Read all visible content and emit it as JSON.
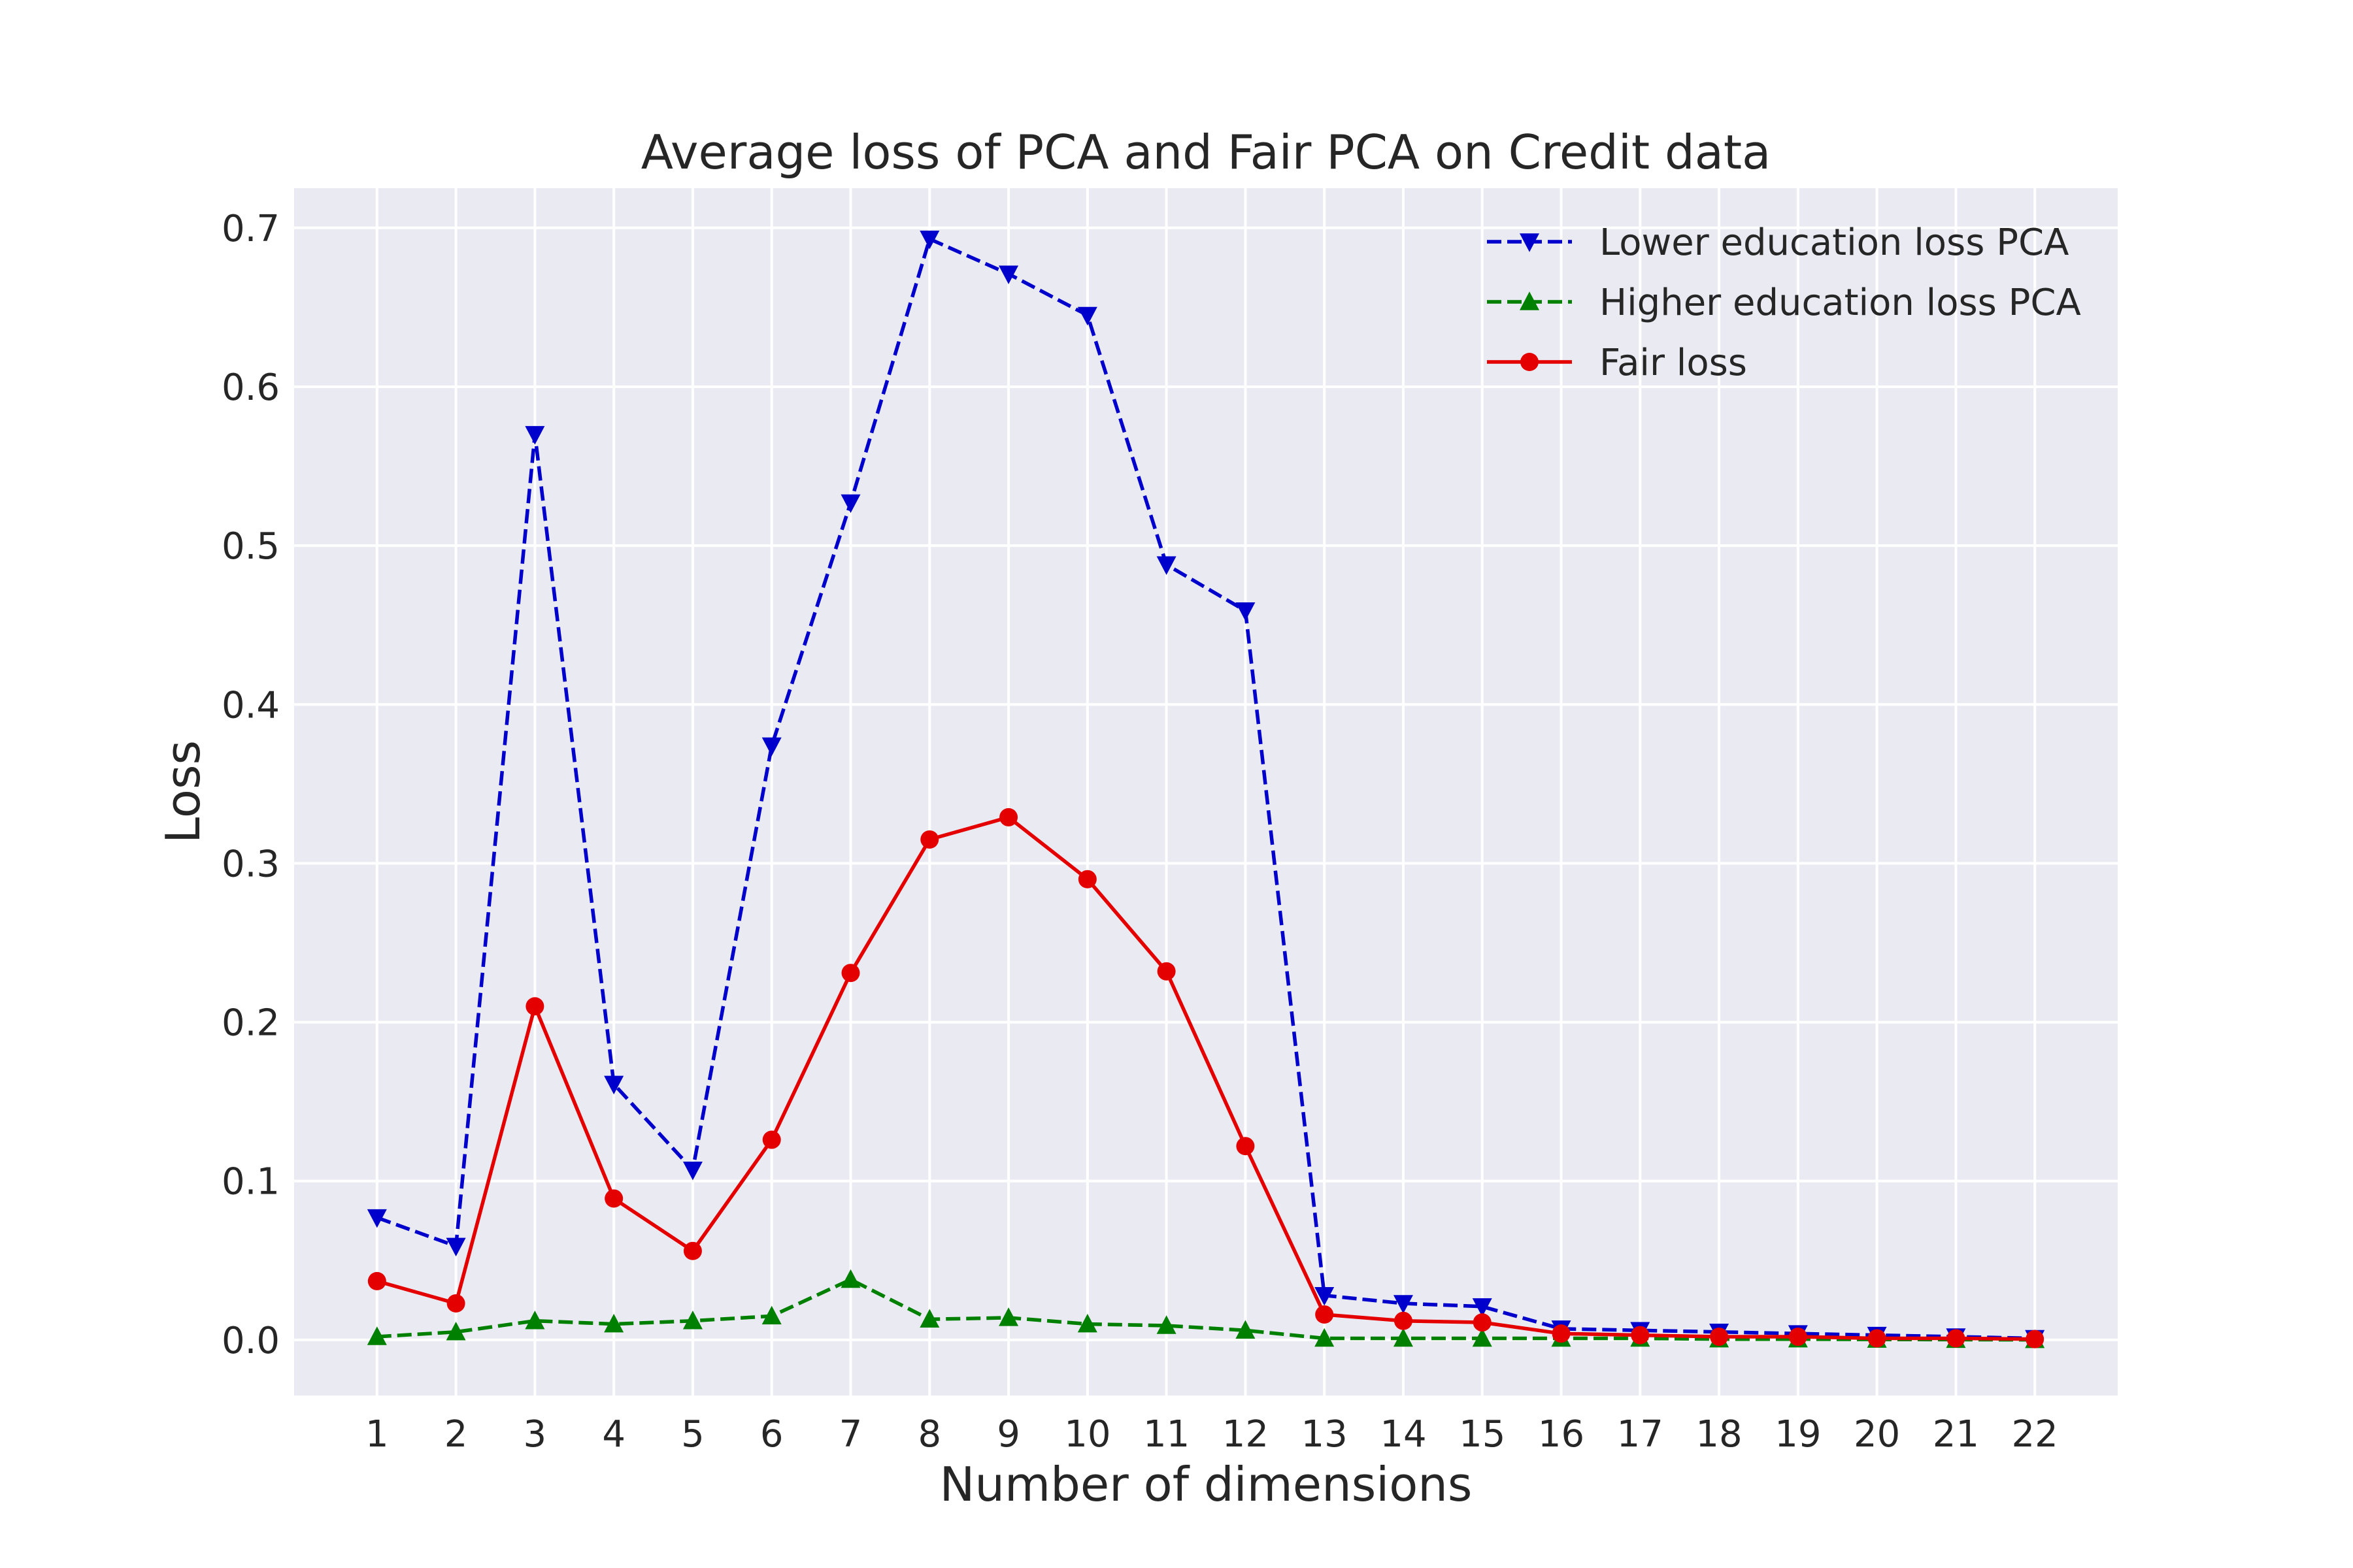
{
  "chart_data": {
    "type": "line",
    "title": "Average loss of PCA and Fair PCA on Credit data",
    "xlabel": "Number of dimensions",
    "ylabel": "Loss",
    "x": [
      1,
      2,
      3,
      4,
      5,
      6,
      7,
      8,
      9,
      10,
      11,
      12,
      13,
      14,
      15,
      16,
      17,
      18,
      19,
      20,
      21,
      22
    ],
    "xlim": [
      -0.05,
      23.05
    ],
    "ylim": [
      -0.035,
      0.725
    ],
    "yticks": [
      0.0,
      0.1,
      0.2,
      0.3,
      0.4,
      0.5,
      0.6,
      0.7
    ],
    "ytick_labels": [
      "0.0",
      "0.1",
      "0.2",
      "0.3",
      "0.4",
      "0.5",
      "0.6",
      "0.7"
    ],
    "xtick_labels": [
      "1",
      "2",
      "3",
      "4",
      "5",
      "6",
      "7",
      "8",
      "9",
      "10",
      "11",
      "12",
      "13",
      "14",
      "15",
      "16",
      "17",
      "18",
      "19",
      "20",
      "21",
      "22"
    ],
    "grid": true,
    "legend_position": "top-right",
    "series": [
      {
        "name": "Lower education loss PCA",
        "color": "#0000cc",
        "line_style": "dashed",
        "marker": "triangle-down",
        "values": [
          0.077,
          0.059,
          0.57,
          0.161,
          0.107,
          0.374,
          0.527,
          0.693,
          0.671,
          0.645,
          0.488,
          0.459,
          0.028,
          0.023,
          0.021,
          0.007,
          0.006,
          0.005,
          0.004,
          0.003,
          0.002,
          0.001
        ]
      },
      {
        "name": "Higher education loss PCA",
        "color": "#008000",
        "line_style": "dashed",
        "marker": "triangle-up",
        "values": [
          0.002,
          0.005,
          0.012,
          0.01,
          0.012,
          0.015,
          0.038,
          0.013,
          0.014,
          0.01,
          0.009,
          0.006,
          0.001,
          0.001,
          0.001,
          0.001,
          0.001,
          0.0005,
          0.0005,
          0.0003,
          0.0002,
          0.0001
        ]
      },
      {
        "name": "Fair loss",
        "color": "#e50000",
        "line_style": "solid",
        "marker": "circle",
        "values": [
          0.037,
          0.023,
          0.21,
          0.089,
          0.056,
          0.126,
          0.231,
          0.315,
          0.329,
          0.29,
          0.232,
          0.122,
          0.016,
          0.012,
          0.011,
          0.004,
          0.003,
          0.002,
          0.002,
          0.001,
          0.001,
          0.0005
        ]
      }
    ]
  }
}
